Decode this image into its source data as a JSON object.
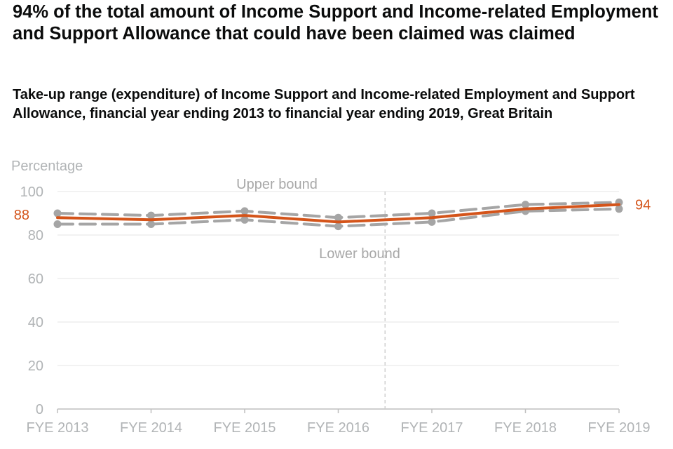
{
  "title": "94% of the total amount of Income Support and Income-related Employment and Support Allowance that could have been claimed was claimed",
  "subtitle": "Take-up range (expenditure) of Income Support and Income-related Employment and Support Allowance, financial year ending 2013 to financial year ending 2019, Great Britain",
  "colors": {
    "estimate": "#d4541a",
    "bounds": "#a5a5a5",
    "axis": "#bfbfbf",
    "grid": "#e6e6e6",
    "text_muted": "#b1b4b6"
  },
  "chart_data": {
    "type": "line",
    "title": "94% of the total amount of Income Support and Income-related Employment and Support Allowance that could have been claimed was claimed",
    "subtitle": "Take-up range (expenditure) of Income Support and Income-related Employment and Support Allowance, financial year ending 2013 to financial year ending 2019, Great Britain",
    "ylabel": "Percentage",
    "xlabel": "",
    "categories": [
      "FYE 2013",
      "FYE 2014",
      "FYE 2015",
      "FYE 2016",
      "FYE 2017",
      "FYE 2018",
      "FYE 2019"
    ],
    "ylim": [
      0,
      100
    ],
    "yticks": [
      0,
      20,
      40,
      60,
      80,
      100
    ],
    "grid": true,
    "series": [
      {
        "name": "Upper bound",
        "values": [
          90,
          89,
          91,
          88,
          90,
          94,
          95
        ],
        "style": "dashed"
      },
      {
        "name": "Lower bound",
        "values": [
          85,
          85,
          87,
          84,
          86,
          91,
          92
        ],
        "style": "dashed"
      },
      {
        "name": "",
        "values": [
          88,
          87,
          89,
          86,
          88,
          92,
          94
        ],
        "style": "solid"
      }
    ],
    "data_labels": {
      "first": "88",
      "last": "94"
    },
    "annotations": [
      "Upper bound",
      "Lower bound"
    ],
    "break_between": [
      "FYE 2016",
      "FYE 2017"
    ]
  }
}
